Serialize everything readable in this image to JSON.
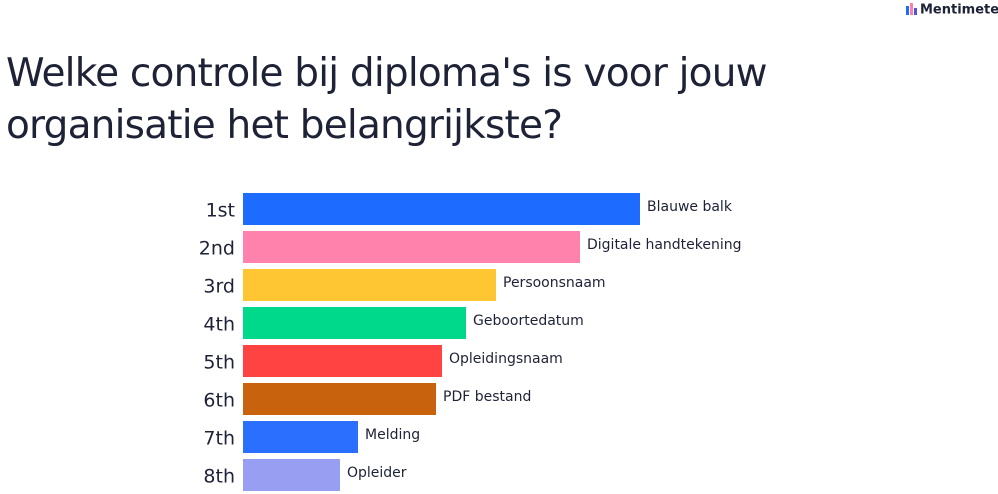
{
  "brand": "Mentimeter",
  "chart_data": {
    "type": "bar",
    "title": [
      "Welke controle bij diploma's is voor jouw",
      "organisatie het belangrijkste?"
    ],
    "categories": [
      "1st",
      "2nd",
      "3rd",
      "4th",
      "5th",
      "6th",
      "7th",
      "8th"
    ],
    "labels": [
      "Blauwe balk",
      "Digitale handtekening",
      "Persoonsnaam",
      "Geboortedatum",
      "Opleidingsnaam",
      "PDF bestand",
      "Melding",
      "Opleider"
    ],
    "values": [
      397,
      337,
      253,
      223,
      199,
      193,
      115,
      97
    ],
    "colors": [
      "#1e6bff",
      "#ff82ac",
      "#ffc633",
      "#00d98c",
      "#ff4242",
      "#c9620c",
      "#2a6fff",
      "#989ff2"
    ]
  }
}
